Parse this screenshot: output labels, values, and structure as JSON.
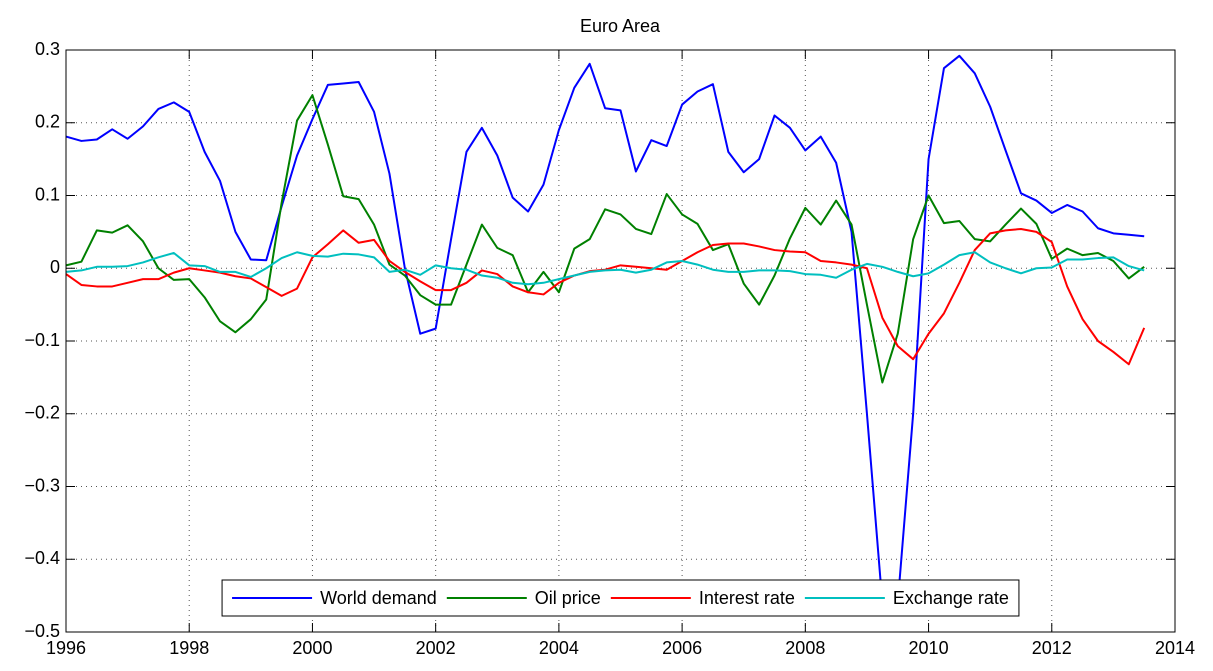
{
  "chart_data": {
    "type": "line",
    "title": "Euro Area",
    "x": [
      1996,
      1996.25,
      1996.5,
      1996.75,
      1997,
      1997.25,
      1997.5,
      1997.75,
      1998,
      1998.25,
      1998.5,
      1998.75,
      1999,
      1999.25,
      1999.5,
      1999.75,
      2000,
      2000.25,
      2000.5,
      2000.75,
      2001,
      2001.25,
      2001.5,
      2001.75,
      2002,
      2002.25,
      2002.5,
      2002.75,
      2003,
      2003.25,
      2003.5,
      2003.75,
      2004,
      2004.25,
      2004.5,
      2004.75,
      2005,
      2005.25,
      2005.5,
      2005.75,
      2006,
      2006.25,
      2006.5,
      2006.75,
      2007,
      2007.25,
      2007.5,
      2007.75,
      2008,
      2008.25,
      2008.5,
      2008.75,
      2009,
      2009.25,
      2009.5,
      2009.75,
      2010,
      2010.25,
      2010.5,
      2010.75,
      2011,
      2011.25,
      2011.5,
      2011.75,
      2012,
      2012.25,
      2012.5,
      2012.75,
      2013,
      2013.25,
      2013.5
    ],
    "series": [
      {
        "name": "World demand",
        "color": "#0000ff",
        "values": [
          0.181,
          0.175,
          0.177,
          0.191,
          0.178,
          0.195,
          0.219,
          0.228,
          0.215,
          0.16,
          0.12,
          0.05,
          0.012,
          0.011,
          0.085,
          0.155,
          0.205,
          0.252,
          0.254,
          0.256,
          0.215,
          0.13,
          0.0,
          -0.09,
          -0.083,
          0.04,
          0.16,
          0.193,
          0.155,
          0.097,
          0.078,
          0.115,
          0.19,
          0.248,
          0.281,
          0.22,
          0.217,
          0.133,
          0.176,
          0.168,
          0.225,
          0.243,
          0.253,
          0.16,
          0.132,
          0.15,
          0.21,
          0.193,
          0.162,
          0.181,
          0.145,
          0.05,
          -0.2,
          -0.46,
          -0.46,
          -0.2,
          0.15,
          0.275,
          0.292,
          0.268,
          0.222,
          0.162,
          0.103,
          0.093,
          0.076,
          0.087,
          0.078,
          0.055,
          0.048,
          0.046,
          0.044
        ]
      },
      {
        "name": "Oil price",
        "color": "#008000",
        "values": [
          0.004,
          0.009,
          0.052,
          0.049,
          0.059,
          0.037,
          0.0,
          -0.016,
          -0.015,
          -0.04,
          -0.073,
          -0.088,
          -0.07,
          -0.043,
          0.09,
          0.203,
          0.238,
          0.17,
          0.099,
          0.095,
          0.06,
          0.005,
          -0.01,
          -0.037,
          -0.05,
          -0.05,
          0.005,
          0.06,
          0.028,
          0.018,
          -0.033,
          -0.005,
          -0.033,
          0.027,
          0.04,
          0.081,
          0.074,
          0.054,
          0.047,
          0.102,
          0.074,
          0.061,
          0.025,
          0.033,
          -0.021,
          -0.05,
          -0.01,
          0.041,
          0.083,
          0.06,
          0.093,
          0.06,
          -0.05,
          -0.157,
          -0.09,
          0.04,
          0.1,
          0.062,
          0.065,
          0.04,
          0.037,
          0.06,
          0.082,
          0.061,
          0.013,
          0.027,
          0.018,
          0.021,
          0.01,
          -0.014,
          0.002
        ]
      },
      {
        "name": "Interest rate",
        "color": "#ff0000",
        "values": [
          -0.008,
          -0.023,
          -0.025,
          -0.025,
          -0.02,
          -0.015,
          -0.015,
          -0.006,
          0.0,
          -0.003,
          -0.006,
          -0.011,
          -0.014,
          -0.026,
          -0.038,
          -0.028,
          0.015,
          0.033,
          0.052,
          0.035,
          0.039,
          0.01,
          -0.005,
          -0.018,
          -0.03,
          -0.03,
          -0.02,
          -0.003,
          -0.008,
          -0.025,
          -0.033,
          -0.036,
          -0.02,
          -0.01,
          -0.004,
          -0.002,
          0.004,
          0.002,
          0.0,
          -0.002,
          0.01,
          0.022,
          0.032,
          0.034,
          0.034,
          0.03,
          0.025,
          0.023,
          0.022,
          0.01,
          0.008,
          0.005,
          0.0,
          -0.068,
          -0.107,
          -0.125,
          -0.09,
          -0.062,
          -0.02,
          0.025,
          0.048,
          0.052,
          0.054,
          0.05,
          0.036,
          -0.025,
          -0.07,
          -0.1,
          -0.115,
          -0.132,
          -0.082
        ]
      },
      {
        "name": "Exchange rate",
        "color": "#00bfbf",
        "values": [
          -0.005,
          -0.003,
          0.002,
          0.002,
          0.003,
          0.008,
          0.015,
          0.021,
          0.004,
          0.003,
          -0.005,
          -0.005,
          -0.012,
          0.0,
          0.014,
          0.022,
          0.017,
          0.016,
          0.02,
          0.019,
          0.015,
          -0.005,
          -0.002,
          -0.009,
          0.004,
          0.0,
          -0.002,
          -0.01,
          -0.013,
          -0.02,
          -0.022,
          -0.02,
          -0.015,
          -0.01,
          -0.005,
          -0.003,
          -0.002,
          -0.006,
          -0.002,
          0.008,
          0.01,
          0.005,
          -0.002,
          -0.005,
          -0.005,
          -0.003,
          -0.003,
          -0.004,
          -0.008,
          -0.009,
          -0.013,
          -0.002,
          0.006,
          0.002,
          -0.005,
          -0.011,
          -0.007,
          0.005,
          0.018,
          0.022,
          0.008,
          0.0,
          -0.007,
          0.0,
          0.001,
          0.012,
          0.012,
          0.014,
          0.015,
          0.003,
          -0.003
        ]
      }
    ],
    "xlim": [
      1996,
      2014
    ],
    "xticks": [
      1996,
      1998,
      2000,
      2002,
      2004,
      2006,
      2008,
      2010,
      2012,
      2014
    ],
    "ylim": [
      -0.5,
      0.3
    ],
    "yticks": [
      {
        "value": -0.5,
        "label": "−0.5"
      },
      {
        "value": -0.4,
        "label": "−0.4"
      },
      {
        "value": -0.3,
        "label": "−0.3"
      },
      {
        "value": -0.2,
        "label": "−0.2"
      },
      {
        "value": -0.1,
        "label": "−0.1"
      },
      0,
      0.1,
      0.2,
      0.3
    ],
    "grid": true,
    "legend": "south"
  }
}
